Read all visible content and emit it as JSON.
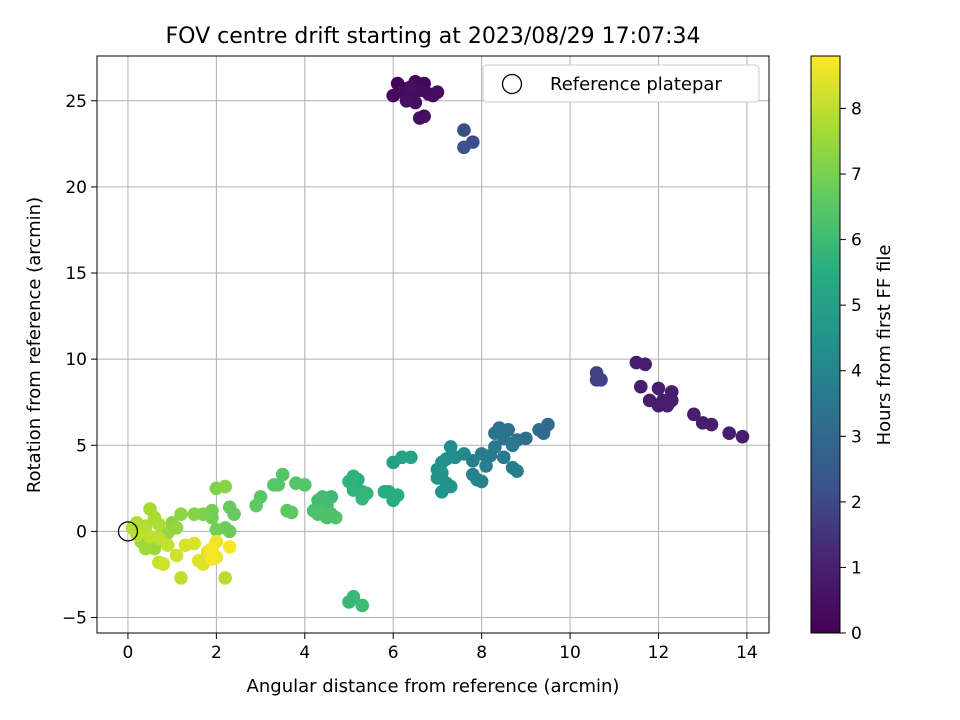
{
  "chart_data": {
    "type": "scatter",
    "title": "FOV centre drift starting at 2023/08/29 17:07:34",
    "xlabel": "Angular distance from reference (arcmin)",
    "ylabel": "Rotation from reference (arcmin)",
    "xlim": [
      -0.7,
      14.5
    ],
    "ylim": [
      -5.9,
      27.6
    ],
    "xticks": [
      0,
      2,
      4,
      6,
      8,
      10,
      12,
      14
    ],
    "yticks": [
      -5,
      0,
      5,
      10,
      15,
      20,
      25
    ],
    "grid": true,
    "legend": {
      "position": "top-right",
      "entries": [
        "Reference platepar"
      ]
    },
    "reference_point": {
      "x": 0,
      "y": 0
    },
    "colorbar": {
      "label": "Hours from first FF file",
      "range": [
        0,
        8.8
      ],
      "ticks": [
        0,
        1,
        2,
        3,
        4,
        5,
        6,
        7,
        8
      ],
      "colormap": "viridis"
    },
    "points": [
      [
        6.1,
        26.0,
        0.05
      ],
      [
        6.3,
        25.7,
        0.1
      ],
      [
        6.5,
        26.1,
        0.15
      ],
      [
        6.7,
        26.0,
        0.2
      ],
      [
        6.0,
        25.3,
        0.25
      ],
      [
        6.2,
        25.5,
        0.3
      ],
      [
        6.4,
        25.2,
        0.3
      ],
      [
        6.6,
        25.6,
        0.35
      ],
      [
        6.8,
        25.4,
        0.35
      ],
      [
        7.0,
        25.5,
        0.4
      ],
      [
        6.5,
        24.9,
        0.4
      ],
      [
        6.3,
        25.0,
        0.45
      ],
      [
        6.6,
        24.0,
        0.5
      ],
      [
        6.7,
        24.1,
        0.5
      ],
      [
        6.4,
        25.8,
        0.45
      ],
      [
        6.9,
        25.3,
        0.4
      ],
      [
        7.6,
        23.3,
        2.1
      ],
      [
        7.8,
        22.6,
        2.1
      ],
      [
        7.6,
        22.3,
        2.2
      ],
      [
        10.6,
        8.8,
        1.8
      ],
      [
        10.6,
        9.2,
        1.8
      ],
      [
        10.7,
        8.8,
        1.8
      ],
      [
        11.5,
        9.8,
        0.9
      ],
      [
        11.7,
        9.7,
        0.9
      ],
      [
        11.6,
        8.4,
        0.9
      ],
      [
        11.8,
        7.6,
        0.9
      ],
      [
        12.0,
        8.3,
        0.9
      ],
      [
        12.0,
        7.3,
        0.9
      ],
      [
        12.1,
        7.6,
        0.9
      ],
      [
        12.3,
        8.1,
        0.9
      ],
      [
        12.3,
        7.6,
        0.9
      ],
      [
        12.2,
        7.3,
        0.9
      ],
      [
        12.8,
        6.8,
        0.9
      ],
      [
        13.0,
        6.3,
        0.9
      ],
      [
        13.2,
        6.2,
        0.9
      ],
      [
        13.6,
        5.7,
        0.9
      ],
      [
        13.9,
        5.5,
        0.9
      ],
      [
        9.5,
        6.2,
        3.1
      ],
      [
        9.3,
        5.9,
        3.2
      ],
      [
        9.4,
        5.7,
        3.1
      ],
      [
        9.0,
        5.4,
        3.2
      ],
      [
        8.8,
        5.3,
        3.3
      ],
      [
        8.6,
        5.9,
        3.3
      ],
      [
        8.4,
        6.0,
        3.3
      ],
      [
        8.3,
        5.7,
        3.4
      ],
      [
        8.5,
        5.4,
        3.4
      ],
      [
        8.7,
        5.0,
        3.5
      ],
      [
        8.3,
        4.9,
        3.5
      ],
      [
        8.5,
        4.3,
        3.6
      ],
      [
        8.2,
        4.4,
        3.6
      ],
      [
        8.0,
        4.5,
        3.7
      ],
      [
        7.8,
        4.1,
        3.8
      ],
      [
        8.1,
        3.8,
        3.8
      ],
      [
        7.8,
        3.3,
        3.9
      ],
      [
        7.9,
        3.0,
        3.9
      ],
      [
        8.0,
        2.9,
        3.9
      ],
      [
        8.7,
        3.7,
        3.7
      ],
      [
        8.8,
        3.5,
        3.7
      ],
      [
        7.6,
        4.5,
        4.1
      ],
      [
        7.4,
        4.3,
        4.2
      ],
      [
        7.3,
        4.9,
        4.3
      ],
      [
        7.2,
        4.2,
        4.3
      ],
      [
        7.1,
        4.0,
        4.4
      ],
      [
        7.0,
        3.6,
        4.4
      ],
      [
        7.1,
        3.4,
        4.5
      ],
      [
        7.0,
        3.1,
        4.5
      ],
      [
        7.2,
        2.8,
        4.5
      ],
      [
        7.1,
        2.3,
        4.6
      ],
      [
        7.3,
        2.6,
        4.6
      ],
      [
        6.0,
        4.0,
        5.0
      ],
      [
        6.2,
        4.3,
        5.1
      ],
      [
        6.4,
        4.3,
        5.1
      ],
      [
        5.9,
        2.3,
        5.4
      ],
      [
        6.1,
        2.1,
        5.5
      ],
      [
        6.0,
        1.8,
        5.5
      ],
      [
        5.8,
        2.3,
        5.5
      ],
      [
        5.3,
        2.3,
        5.6
      ],
      [
        5.2,
        3.0,
        5.6
      ],
      [
        5.1,
        3.2,
        5.7
      ],
      [
        5.0,
        2.9,
        5.7
      ],
      [
        5.1,
        2.4,
        5.7
      ],
      [
        5.3,
        1.9,
        5.8
      ],
      [
        5.4,
        2.2,
        5.8
      ],
      [
        5.0,
        -4.1,
        5.9
      ],
      [
        5.1,
        -3.8,
        5.9
      ],
      [
        5.3,
        -4.3,
        6.0
      ],
      [
        4.6,
        2.0,
        6.0
      ],
      [
        4.4,
        2.0,
        6.1
      ],
      [
        4.3,
        1.8,
        6.1
      ],
      [
        4.5,
        1.5,
        6.1
      ],
      [
        4.2,
        1.2,
        6.2
      ],
      [
        4.4,
        1.2,
        6.2
      ],
      [
        4.6,
        1.0,
        6.2
      ],
      [
        4.5,
        0.8,
        6.3
      ],
      [
        4.7,
        0.8,
        6.3
      ],
      [
        4.3,
        1.0,
        6.3
      ],
      [
        4.0,
        2.7,
        6.4
      ],
      [
        3.8,
        2.8,
        6.4
      ],
      [
        3.5,
        3.3,
        6.4
      ],
      [
        3.4,
        2.7,
        6.5
      ],
      [
        3.3,
        2.7,
        6.5
      ],
      [
        3.0,
        2.0,
        6.5
      ],
      [
        2.9,
        1.5,
        6.6
      ],
      [
        3.6,
        1.2,
        6.6
      ],
      [
        3.7,
        1.1,
        6.6
      ],
      [
        2.3,
        1.4,
        6.7
      ],
      [
        2.4,
        1.0,
        6.7
      ],
      [
        2.2,
        0.2,
        6.8
      ],
      [
        2.3,
        0.0,
        6.8
      ],
      [
        2.0,
        0.1,
        6.9
      ],
      [
        1.9,
        0.8,
        6.9
      ],
      [
        1.9,
        1.2,
        6.9
      ],
      [
        1.7,
        1.0,
        7.0
      ],
      [
        2.0,
        2.5,
        7.1
      ],
      [
        2.2,
        2.6,
        7.2
      ],
      [
        1.5,
        1.0,
        7.2
      ],
      [
        1.2,
        1.0,
        7.3
      ],
      [
        1.0,
        0.5,
        7.3
      ],
      [
        1.1,
        0.2,
        7.4
      ],
      [
        0.9,
        -0.1,
        7.4
      ],
      [
        0.8,
        -0.5,
        7.5
      ],
      [
        0.6,
        -1.0,
        7.5
      ],
      [
        0.4,
        -1.0,
        7.6
      ],
      [
        0.3,
        -0.6,
        7.6
      ],
      [
        0.5,
        1.3,
        7.7
      ],
      [
        0.6,
        0.8,
        7.7
      ],
      [
        0.7,
        0.4,
        7.8
      ],
      [
        0.4,
        0.3,
        7.8
      ],
      [
        0.2,
        0.5,
        7.8
      ],
      [
        0.1,
        0.2,
        7.9
      ],
      [
        0.3,
        0.1,
        7.9
      ],
      [
        0.2,
        -0.2,
        8.0
      ],
      [
        0.5,
        -0.3,
        8.0
      ],
      [
        0.7,
        -0.4,
        8.0
      ],
      [
        0.9,
        -0.8,
        8.1
      ],
      [
        0.7,
        -1.8,
        8.1
      ],
      [
        0.8,
        -1.9,
        8.2
      ],
      [
        1.1,
        -1.4,
        8.2
      ],
      [
        1.2,
        -2.7,
        8.0
      ],
      [
        1.3,
        -0.8,
        8.3
      ],
      [
        1.5,
        -0.7,
        8.3
      ],
      [
        1.6,
        -1.7,
        8.4
      ],
      [
        1.7,
        -1.9,
        8.4
      ],
      [
        1.8,
        -1.2,
        8.5
      ],
      [
        1.9,
        -1.3,
        8.5
      ],
      [
        2.0,
        -1.5,
        8.6
      ],
      [
        2.2,
        -2.7,
        7.9
      ],
      [
        2.3,
        -0.9,
        8.7
      ],
      [
        2.0,
        -0.6,
        8.6
      ],
      [
        1.9,
        -1.0,
        8.7
      ],
      [
        1.9,
        -1.6,
        8.7
      ]
    ]
  }
}
